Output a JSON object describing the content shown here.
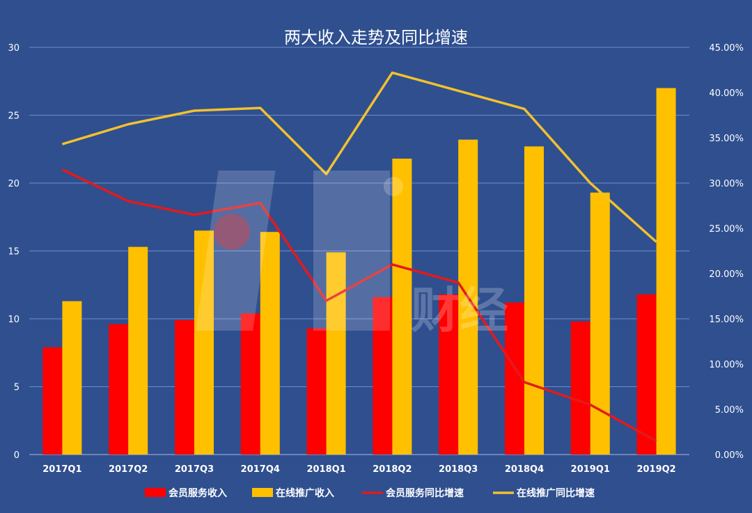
{
  "chart_data": {
    "type": "bar",
    "title": "两大收入走势及同比增速",
    "categories": [
      "2017Q1",
      "2017Q2",
      "2017Q3",
      "2017Q4",
      "2018Q1",
      "2018Q2",
      "2018Q3",
      "2018Q4",
      "2019Q1",
      "2019Q2"
    ],
    "series": [
      {
        "name": "会员服务收入",
        "type": "bar",
        "axis": "left",
        "color": "#ff0000",
        "values": [
          7.9,
          9.6,
          9.9,
          10.4,
          9.3,
          11.6,
          11.8,
          11.2,
          9.8,
          11.8
        ]
      },
      {
        "name": "在线推广收入",
        "type": "bar",
        "axis": "left",
        "color": "#ffc000",
        "values": [
          11.3,
          15.3,
          16.5,
          16.4,
          14.9,
          21.8,
          23.2,
          22.7,
          19.3,
          27.0
        ]
      },
      {
        "name": "会员服务同比增速",
        "type": "line",
        "axis": "right",
        "color": "#e31a1c",
        "values": [
          31.5,
          28.0,
          26.5,
          27.8,
          17.0,
          21.0,
          19.0,
          8.0,
          5.5,
          1.5
        ]
      },
      {
        "name": "在线推广同比增速",
        "type": "line",
        "axis": "right",
        "color": "#f2c12e",
        "values": [
          34.3,
          36.5,
          38.0,
          38.3,
          31.0,
          42.2,
          40.2,
          38.2,
          30.0,
          23.5
        ]
      }
    ],
    "y_left": {
      "min": 0,
      "max": 30,
      "ticks": [
        "0",
        "5",
        "10",
        "15",
        "20",
        "25",
        "30"
      ]
    },
    "y_right": {
      "min": 0,
      "max": 45,
      "ticks": [
        "0.00%",
        "5.00%",
        "10.00%",
        "15.00%",
        "20.00%",
        "25.00%",
        "30.00%",
        "35.00%",
        "40.00%",
        "45.00%"
      ]
    },
    "grid": true,
    "legend_position": "bottom"
  },
  "watermark": {
    "brand": "财经"
  }
}
